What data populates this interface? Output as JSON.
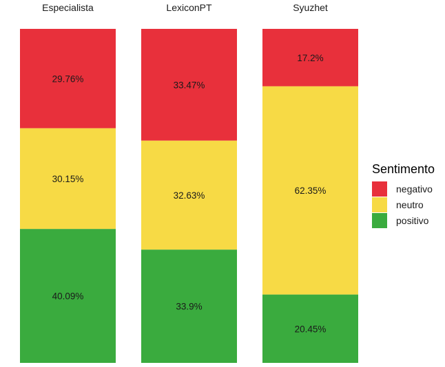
{
  "chart_data": {
    "type": "bar",
    "stacked": true,
    "percent": true,
    "facets": [
      "Especialista",
      "LexiconPT",
      "Syuzhet"
    ],
    "series": [
      {
        "name": "negativo",
        "color": "#E8303B",
        "values": [
          29.76,
          33.47,
          17.2
        ]
      },
      {
        "name": "neutro",
        "color": "#F7DA45",
        "values": [
          30.15,
          32.63,
          62.35
        ]
      },
      {
        "name": "positivo",
        "color": "#3AAB3E",
        "values": [
          40.09,
          33.9,
          20.45
        ]
      }
    ],
    "labels": [
      [
        "29.76%",
        "33.47%",
        "17.2%"
      ],
      [
        "30.15%",
        "32.63%",
        "62.35%"
      ],
      [
        "40.09%",
        "33.9%",
        "20.45%"
      ]
    ],
    "legend": {
      "title": "Sentimento",
      "position": "right"
    },
    "ylim": [
      0,
      100
    ],
    "grid": false
  }
}
